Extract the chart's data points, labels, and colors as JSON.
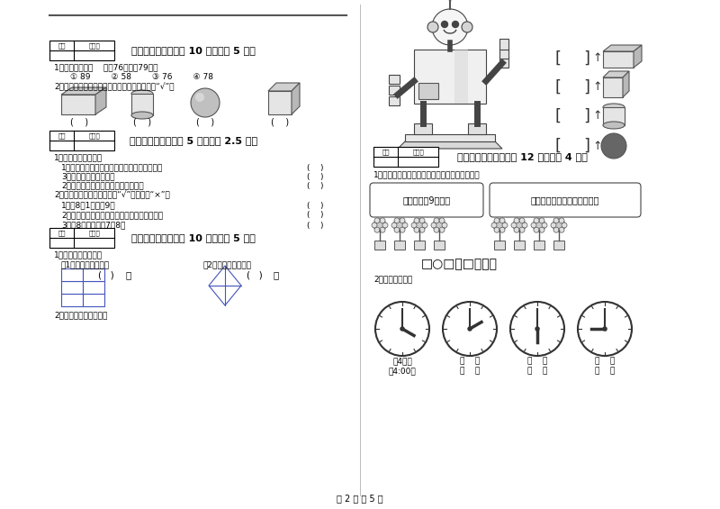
{
  "page_bg": "#ffffff",
  "page_num_text": "第 2 页 共 5 页",
  "left_col": {
    "section4_header": "四、选一选（本题共 10 分，每题 5 分）",
    "section4_q1": "1．下列数中，（    ）比76大，比79小。",
    "section4_q1_opts": "① 89        ② 58        ③ 76        ④ 78",
    "section4_q2": "2．滚一滚，哪一种滚得快，在下面的括号里打“√”。",
    "section5_header": "五、对与错（本题共 5 分，每题 2.5 分）",
    "section5_q1": "1．我会判断对与错。",
    "section5_q1_1": "1．两个一样大的正方形可以拼成一个长方形。",
    "section5_q1_2": "3．长方形就是正方形。",
    "section5_q1_3": "2．两个三角形可以拼成一个四边形。",
    "section5_q2": "2．下面的说法对吗，对的打“√”，错的打“×”。",
    "section5_q2_1": "1．比8大1的数是9。",
    "section5_q2_2": "2．从右边起，第一位是十位，第二位是个位。",
    "section5_q2_3": "3．与8相邻的数是7和8。",
    "section6_header": "六、数一数（本题共 10 分，每题 5 分）",
    "section6_q1": "1．数一数，填一填。",
    "section6_q1_1": "（1）有几个长方形。",
    "section6_q1_2": "（2）有几个三角形。",
    "section6_q2": "2．数一数，填一填吧。"
  },
  "right_col": {
    "section7_header": "七、看图说话（本题共 12 分，每题 4 分）",
    "section7_q1": "1．看图说话，算一算两个组一共栽了多少盆花？",
    "section7_speech1": "第一组栽了9盆花。",
    "section7_speech2": "第二组栽的和第一组同样多。",
    "section7_formula": "□○□＝□（盆）",
    "section7_q2": "2．我会认钟表。",
    "section7_clock_labels": [
      "（4时）",
      "（    ）",
      "（    ）",
      "（    ）"
    ],
    "section7_clock_labels2": [
      "（4:00）",
      "（    ）",
      "（    ）",
      "（    ）"
    ]
  }
}
